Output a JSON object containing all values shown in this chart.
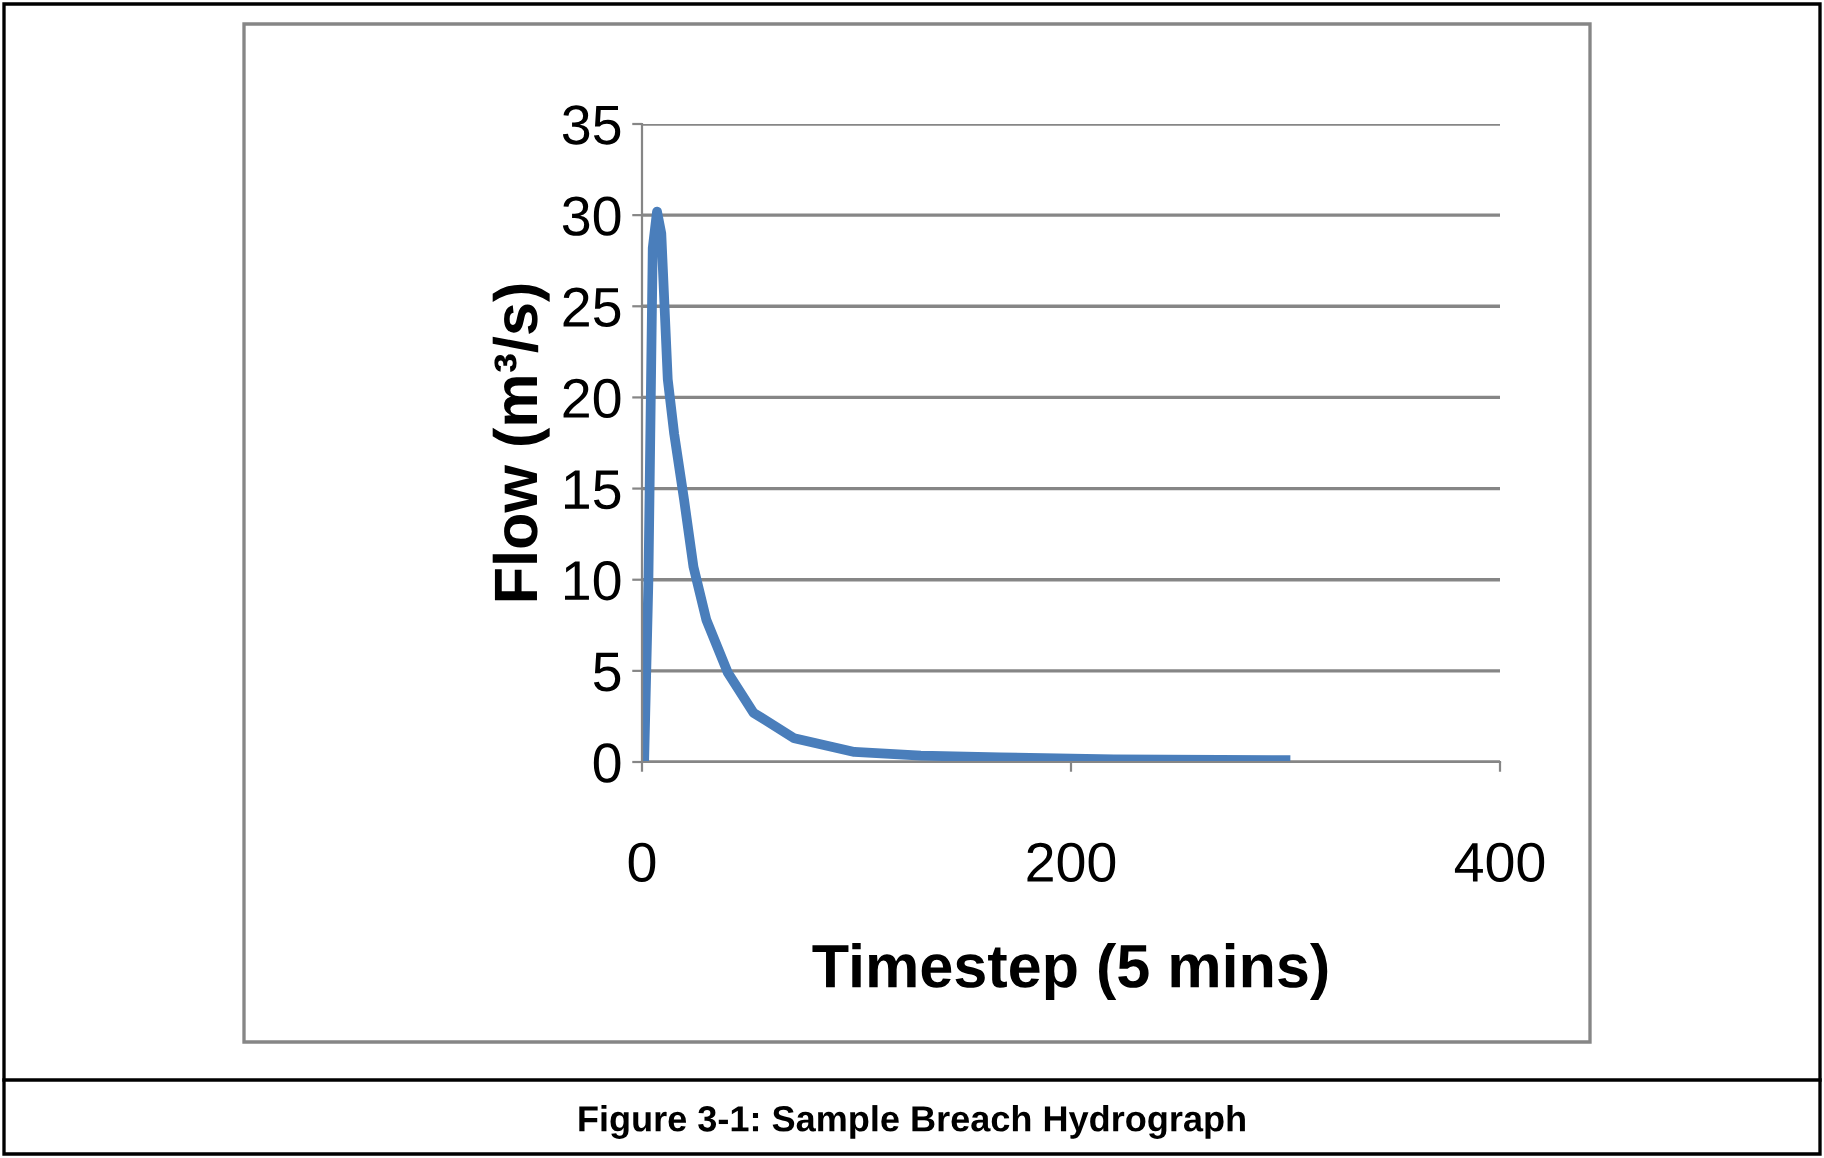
{
  "chart_data": {
    "type": "line",
    "xlabel": "Timestep (5 mins)",
    "ylabel": "Flow (m³/s)",
    "annotations": [
      "Figure 3-1: Sample Breach Hydrograph"
    ],
    "series": [
      {
        "color": "#4a7ebb",
        "x": [
          1,
          3,
          5,
          7,
          9,
          12,
          15,
          19.6,
          24,
          30,
          40,
          52,
          71,
          99,
          130,
          167,
          220,
          300
        ],
        "values": [
          0,
          10,
          28.2,
          30.2,
          29,
          21,
          18,
          14.4,
          10.7,
          7.8,
          4.9,
          2.7,
          1.3,
          0.55,
          0.35,
          0.25,
          0.15,
          0.1
        ]
      }
    ],
    "xlim": [
      0,
      400
    ],
    "xticks": [
      0,
      200,
      400
    ],
    "ylim": [
      0,
      35
    ],
    "yticks": [
      0,
      5,
      10,
      15,
      20,
      25,
      30,
      35
    ],
    "grid": "y",
    "legend": false,
    "marker": "none",
    "line_style": "solid"
  }
}
